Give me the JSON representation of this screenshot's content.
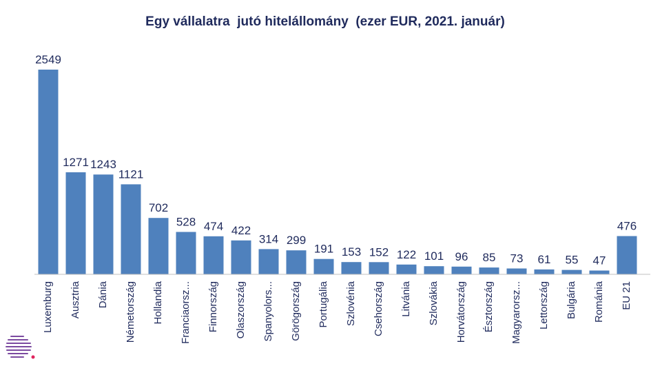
{
  "chart_data": {
    "type": "bar",
    "title": "Egy vállalatra  jutó hitelállomány  (ezer EUR, 2021. január)",
    "categories": [
      "Luxemburg",
      "Ausztria",
      "Dánia",
      "Németország",
      "Hollandia",
      "Franciaorsz...",
      "Finnország",
      "Olaszország",
      "Spanyolors...",
      "Görögország",
      "Portugália",
      "Szlovénia",
      "Csehország",
      "Litvánia",
      "Szlovákia",
      "Horvátország",
      "Észtország",
      "Magyarorsz...",
      "Lettország",
      "Bulgária",
      "Románia",
      "EU 21"
    ],
    "values": [
      2549,
      1271,
      1243,
      1121,
      702,
      528,
      474,
      422,
      314,
      299,
      191,
      153,
      152,
      122,
      101,
      96,
      85,
      73,
      61,
      55,
      47,
      476
    ],
    "labels": [
      "2549",
      "1271",
      "1243",
      "1121",
      "702",
      "528",
      "474",
      "422",
      "314",
      "299",
      "191",
      "153",
      "152",
      "122",
      "101",
      "96",
      "85",
      "73",
      "61",
      "55",
      "47",
      "476"
    ],
    "ylim": [
      0,
      2549
    ],
    "grid": false,
    "legend": "none",
    "bar_color": "#4f81bd",
    "text_color": "#1f2a5c"
  }
}
